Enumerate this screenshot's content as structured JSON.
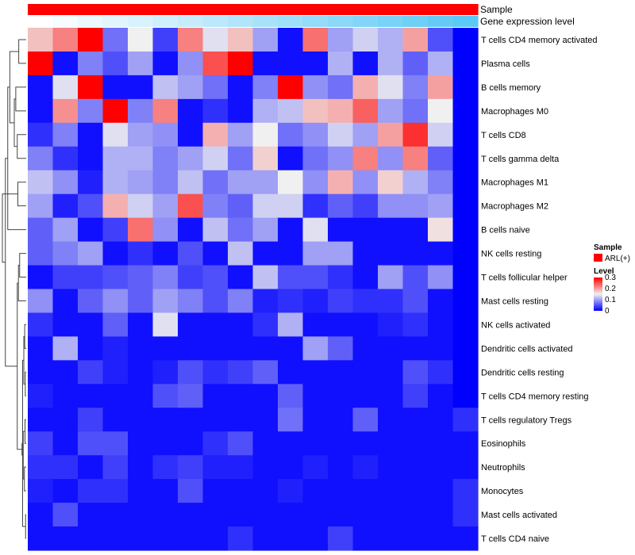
{
  "chart_data": {
    "type": "heatmap",
    "annotation_rows": [
      {
        "name": "Sample",
        "label": "Sample"
      },
      {
        "name": "Gene expression level",
        "label": "Gene expression level"
      }
    ],
    "sample_annotation": {
      "values": [
        "ARL(+)",
        "ARL(+)",
        "ARL(+)",
        "ARL(+)",
        "ARL(+)",
        "ARL(+)",
        "ARL(+)",
        "ARL(+)",
        "ARL(+)",
        "ARL(+)",
        "ARL(+)",
        "ARL(+)",
        "ARL(+)",
        "ARL(+)",
        "ARL(+)",
        "ARL(+)",
        "ARL(+)",
        "ARL(+)"
      ],
      "color": "#ff0000"
    },
    "expression_annotation": {
      "values": [
        0.0,
        0.06,
        0.12,
        0.18,
        0.24,
        0.29,
        0.35,
        0.41,
        0.47,
        0.53,
        0.59,
        0.65,
        0.71,
        0.76,
        0.82,
        0.88,
        0.94,
        1.0
      ],
      "low_color": "#ffffff",
      "high_color": "#5bc8f5"
    },
    "rows": [
      "T cells CD4 memory activated",
      "Plasma cells",
      "B cells memory",
      "Macrophages M0",
      "T cells CD8",
      "T cells gamma delta",
      "Macrophages M1",
      "Macrophages M2",
      "B cells naive",
      "NK cells resting",
      "T cells follicular helper",
      "Mast cells resting",
      "NK cells activated",
      "Dendritic cells activated",
      "Dendritic cells resting",
      "T cells CD4 memory resting",
      "T cells regulatory  Tregs",
      "Eosinophils",
      "Neutrophils",
      "Monocytes",
      "Mast cells activated",
      "T cells CD4 naive"
    ],
    "values": [
      [
        0.18,
        0.22,
        0.3,
        0.07,
        0.15,
        0.04,
        0.22,
        0.14,
        0.18,
        0.1,
        0.01,
        0.23,
        0.1,
        0.13,
        0.11,
        0.2,
        0.05,
        0.0
      ],
      [
        0.3,
        0.01,
        0.08,
        0.05,
        0.1,
        0.01,
        0.09,
        0.25,
        0.3,
        0.01,
        0.01,
        0.01,
        0.11,
        0.01,
        0.11,
        0.06,
        0.11,
        0.0
      ],
      [
        0.01,
        0.14,
        0.3,
        0.01,
        0.01,
        0.12,
        0.1,
        0.07,
        0.01,
        0.08,
        0.3,
        0.09,
        0.07,
        0.19,
        0.14,
        0.08,
        0.2,
        0.0
      ],
      [
        0.01,
        0.21,
        0.08,
        0.3,
        0.08,
        0.22,
        0.01,
        0.03,
        0.01,
        0.11,
        0.12,
        0.18,
        0.19,
        0.24,
        0.1,
        0.07,
        0.15,
        0.0
      ],
      [
        0.03,
        0.08,
        0.01,
        0.14,
        0.1,
        0.09,
        0.01,
        0.19,
        0.1,
        0.15,
        0.07,
        0.09,
        0.13,
        0.1,
        0.2,
        0.27,
        0.13,
        0.0
      ],
      [
        0.08,
        0.03,
        0.01,
        0.11,
        0.11,
        0.08,
        0.1,
        0.13,
        0.07,
        0.17,
        0.01,
        0.07,
        0.09,
        0.22,
        0.09,
        0.22,
        0.06,
        0.0
      ],
      [
        0.12,
        0.09,
        0.02,
        0.11,
        0.1,
        0.08,
        0.12,
        0.07,
        0.1,
        0.1,
        0.15,
        0.09,
        0.19,
        0.09,
        0.17,
        0.11,
        0.08,
        0.0
      ],
      [
        0.1,
        0.02,
        0.05,
        0.19,
        0.13,
        0.1,
        0.25,
        0.08,
        0.06,
        0.13,
        0.13,
        0.03,
        0.06,
        0.04,
        0.09,
        0.09,
        0.1,
        0.0
      ],
      [
        0.06,
        0.1,
        0.01,
        0.04,
        0.23,
        0.09,
        0.01,
        0.12,
        0.07,
        0.1,
        0.01,
        0.14,
        0.01,
        0.01,
        0.01,
        0.01,
        0.16,
        0.0
      ],
      [
        0.06,
        0.08,
        0.1,
        0.01,
        0.03,
        0.01,
        0.05,
        0.01,
        0.12,
        0.01,
        0.01,
        0.1,
        0.1,
        0.01,
        0.01,
        0.01,
        0.01,
        0.0
      ],
      [
        0.01,
        0.04,
        0.04,
        0.05,
        0.06,
        0.08,
        0.04,
        0.05,
        0.01,
        0.12,
        0.05,
        0.05,
        0.03,
        0.01,
        0.1,
        0.05,
        0.09,
        0.0
      ],
      [
        0.09,
        0.01,
        0.06,
        0.09,
        0.06,
        0.1,
        0.08,
        0.05,
        0.08,
        0.02,
        0.03,
        0.02,
        0.04,
        0.03,
        0.03,
        0.05,
        0.01,
        0.0
      ],
      [
        0.03,
        0.01,
        0.01,
        0.06,
        0.01,
        0.14,
        0.01,
        0.01,
        0.01,
        0.03,
        0.11,
        0.01,
        0.01,
        0.01,
        0.02,
        0.03,
        0.01,
        0.0
      ],
      [
        0.01,
        0.11,
        0.01,
        0.02,
        0.01,
        0.01,
        0.01,
        0.01,
        0.01,
        0.01,
        0.01,
        0.1,
        0.06,
        0.01,
        0.01,
        0.01,
        0.01,
        0.0
      ],
      [
        0.01,
        0.01,
        0.04,
        0.02,
        0.01,
        0.02,
        0.05,
        0.03,
        0.04,
        0.06,
        0.01,
        0.01,
        0.01,
        0.01,
        0.01,
        0.05,
        0.03,
        0.0
      ],
      [
        0.02,
        0.01,
        0.01,
        0.01,
        0.01,
        0.05,
        0.06,
        0.01,
        0.01,
        0.01,
        0.06,
        0.01,
        0.01,
        0.01,
        0.01,
        0.04,
        0.01,
        0.0
      ],
      [
        0.01,
        0.01,
        0.04,
        0.01,
        0.01,
        0.01,
        0.01,
        0.01,
        0.01,
        0.01,
        0.07,
        0.01,
        0.01,
        0.06,
        0.01,
        0.01,
        0.01,
        0.03
      ],
      [
        0.04,
        0.01,
        0.05,
        0.05,
        0.01,
        0.01,
        0.01,
        0.03,
        0.05,
        0.01,
        0.01,
        0.01,
        0.01,
        0.01,
        0.01,
        0.01,
        0.01,
        0.01
      ],
      [
        0.03,
        0.03,
        0.01,
        0.04,
        0.01,
        0.03,
        0.04,
        0.02,
        0.02,
        0.01,
        0.01,
        0.02,
        0.01,
        0.02,
        0.01,
        0.01,
        0.01,
        0.01
      ],
      [
        0.02,
        0.01,
        0.03,
        0.03,
        0.01,
        0.01,
        0.05,
        0.01,
        0.01,
        0.01,
        0.02,
        0.01,
        0.01,
        0.01,
        0.01,
        0.01,
        0.01,
        0.03
      ],
      [
        0.01,
        0.05,
        0.01,
        0.01,
        0.01,
        0.01,
        0.01,
        0.01,
        0.01,
        0.01,
        0.01,
        0.01,
        0.01,
        0.01,
        0.01,
        0.01,
        0.01,
        0.03
      ],
      [
        0.01,
        0.01,
        0.01,
        0.01,
        0.01,
        0.01,
        0.01,
        0.01,
        0.03,
        0.01,
        0.01,
        0.01,
        0.04,
        0.01,
        0.01,
        0.01,
        0.01,
        0.01
      ]
    ],
    "color_scale": {
      "min": 0,
      "mid": 0.15,
      "max": 0.3,
      "low": "#0000ff",
      "mid_color": "#f0f0f0",
      "high": "#ff0000"
    },
    "legend": {
      "sample_title": "Sample",
      "sample_entry": "ARL(+)",
      "level_title": "Level",
      "ticks": [
        {
          "value": 0.3,
          "label": "0.3"
        },
        {
          "value": 0.2,
          "label": "0.2"
        },
        {
          "value": 0.1,
          "label": "0.1"
        },
        {
          "value": 0,
          "label": "0"
        }
      ],
      "placement": "right"
    },
    "row_dendrogram": {
      "merges": [
        [
          -1,
          -2
        ],
        [
          -3,
          -4
        ],
        [
          -5,
          -6
        ],
        [
          -7,
          -8
        ],
        [
          2,
          3
        ],
        [
          1,
          5
        ],
        [
          -9,
          6
        ],
        [
          -10,
          -11
        ],
        [
          -12,
          8
        ],
        [
          -13,
          -14
        ],
        [
          -15,
          -16
        ],
        [
          -17,
          -18
        ],
        [
          -19,
          -20
        ],
        [
          -21,
          -22
        ],
        [
          10,
          11
        ],
        [
          12,
          13
        ],
        [
          14,
          15
        ],
        [
          16,
          17
        ],
        [
          9,
          18
        ],
        [
          7,
          19
        ],
        [
          4,
          20
        ]
      ],
      "heights": [
        0.25,
        0.35,
        0.3,
        0.28,
        0.4,
        0.55,
        0.62,
        0.22,
        0.26,
        0.05,
        0.03,
        0.04,
        0.06,
        0.02,
        0.08,
        0.1,
        0.12,
        0.14,
        0.3,
        0.7,
        0.8
      ]
    }
  }
}
